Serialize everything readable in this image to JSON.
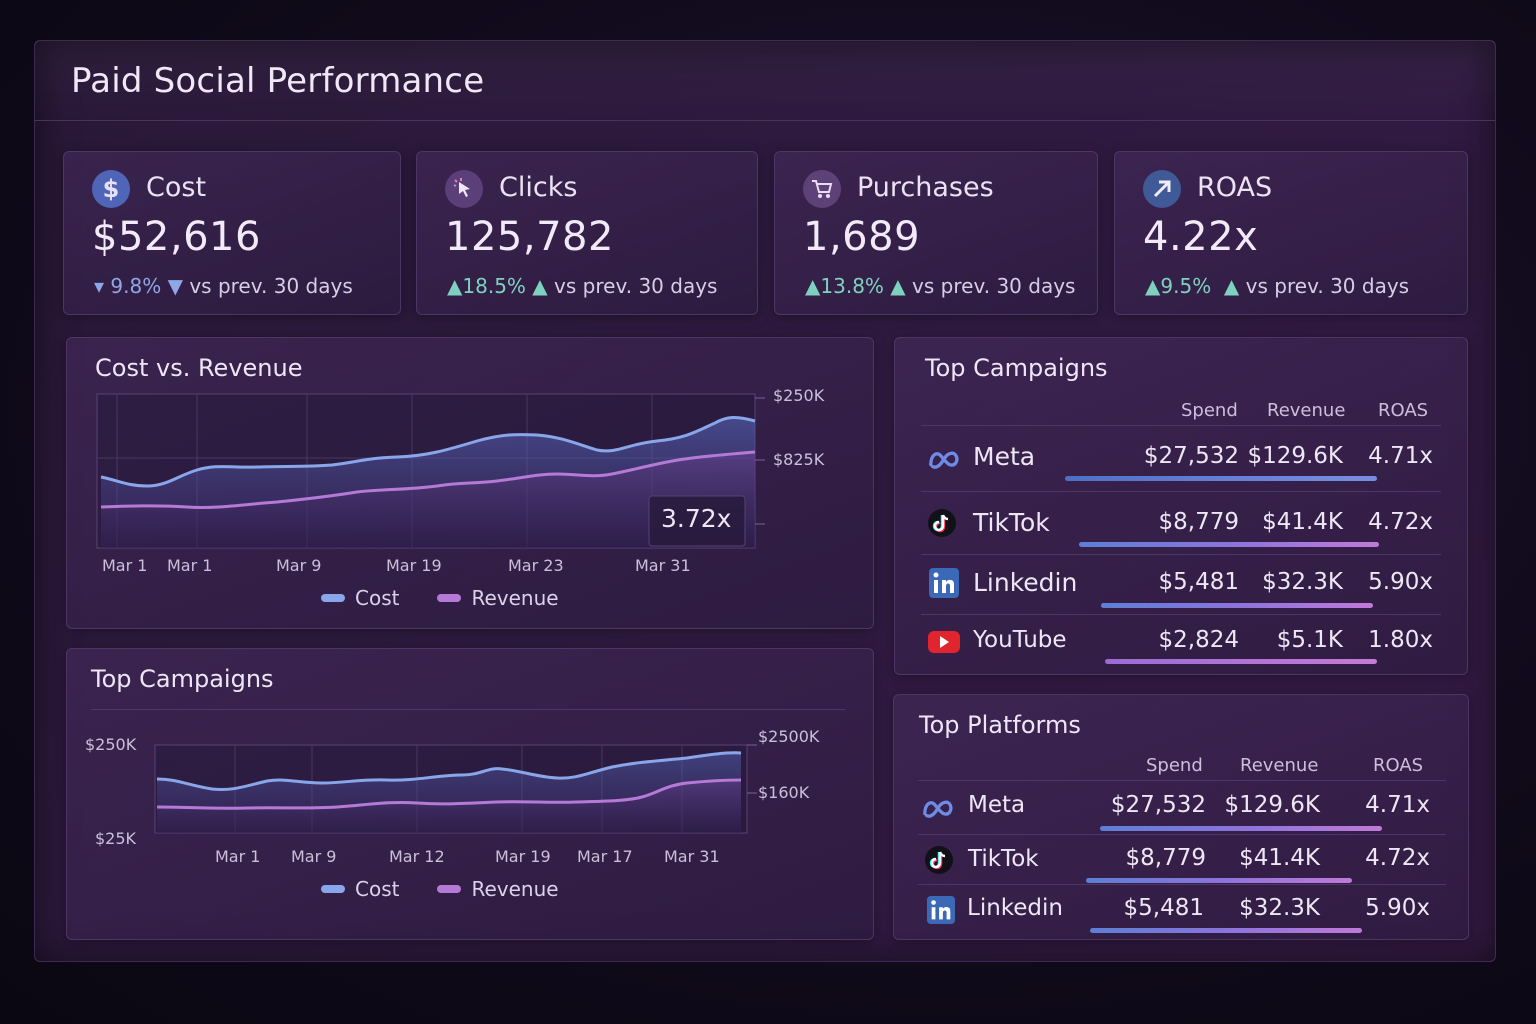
{
  "header": {
    "title": "Paid Social Performance"
  },
  "kpis": [
    {
      "label": "Cost",
      "icon": "dollar-icon",
      "value": "$52,616",
      "delta": "9.8%",
      "direction": "down",
      "comparison": "vs prev. 30 days"
    },
    {
      "label": "Clicks",
      "icon": "cursor-click-icon",
      "value": "125,782",
      "delta": "18.5%",
      "direction": "up",
      "comparison": "vs prev. 30 days"
    },
    {
      "label": "Purchases",
      "icon": "cart-icon",
      "value": "1,689",
      "delta": "13.8%",
      "direction": "up",
      "comparison": "vs prev. 30 days"
    },
    {
      "label": "ROAS",
      "icon": "arrow-up-right-icon",
      "value": "4.22x",
      "delta": "9.5%",
      "direction": "up",
      "comparison": "vs prev. 30 days"
    }
  ],
  "cost_revenue_chart": {
    "title": "Cost vs. Revenue",
    "y_right_labels": [
      "$250K",
      "$825K"
    ],
    "x_labels": [
      "Mar 1",
      "Mar 1",
      "Mar 9",
      "Mar 19",
      "Mar 23",
      "Mar 31"
    ],
    "roas_badge": "3.72x",
    "legend": [
      {
        "name": "Cost",
        "color": "#8aa6ea"
      },
      {
        "name": "Revenue",
        "color": "#b47ad6"
      }
    ]
  },
  "bottom_chart": {
    "title": "Top Campaigns",
    "y_left_labels": [
      "$250K",
      "$25K"
    ],
    "y_right_labels": [
      "$2500K",
      "$160K"
    ],
    "x_labels": [
      "Mar 1",
      "Mar 9",
      "Mar 12",
      "Mar 19",
      "Mar 17",
      "Mar 31"
    ],
    "legend": [
      {
        "name": "Cost",
        "color": "#8aa6ea"
      },
      {
        "name": "Revenue",
        "color": "#b47ad6"
      }
    ]
  },
  "top_campaigns": {
    "title": "Top Campaigns",
    "columns": [
      "Spend",
      "Revenue",
      "ROAS"
    ],
    "rows": [
      {
        "name": "Meta",
        "icon": "meta-icon",
        "spend": "$27,532",
        "revenue": "$129.6K",
        "roas": "4.71x"
      },
      {
        "name": "TikTok",
        "icon": "tiktok-icon",
        "spend": "$8,779",
        "revenue": "$41.4K",
        "roas": "4.72x"
      },
      {
        "name": "Linkedin",
        "icon": "linkedin-icon",
        "spend": "$5,481",
        "revenue": "$32.3K",
        "roas": "5.90x"
      },
      {
        "name": "YouTube",
        "icon": "youtube-icon",
        "spend": "$2,824",
        "revenue": "$5.1K",
        "roas": "1.80x"
      }
    ]
  },
  "top_platforms": {
    "title": "Top Platforms",
    "columns": [
      "Spend",
      "Revenue",
      "ROAS"
    ],
    "rows": [
      {
        "name": "Meta",
        "icon": "meta-icon",
        "spend": "$27,532",
        "revenue": "$129.6K",
        "roas": "4.71x"
      },
      {
        "name": "TikTok",
        "icon": "tiktok-icon",
        "spend": "$8,779",
        "revenue": "$41.4K",
        "roas": "4.72x"
      },
      {
        "name": "Linkedin",
        "icon": "linkedin-icon",
        "spend": "$5,481",
        "revenue": "$32.3K",
        "roas": "5.90x"
      }
    ]
  },
  "colors": {
    "cost_line": "#8aa6ea",
    "revenue_line": "#b47ad6",
    "up": "#7fd1bf",
    "down": "#8fa6e8"
  }
}
